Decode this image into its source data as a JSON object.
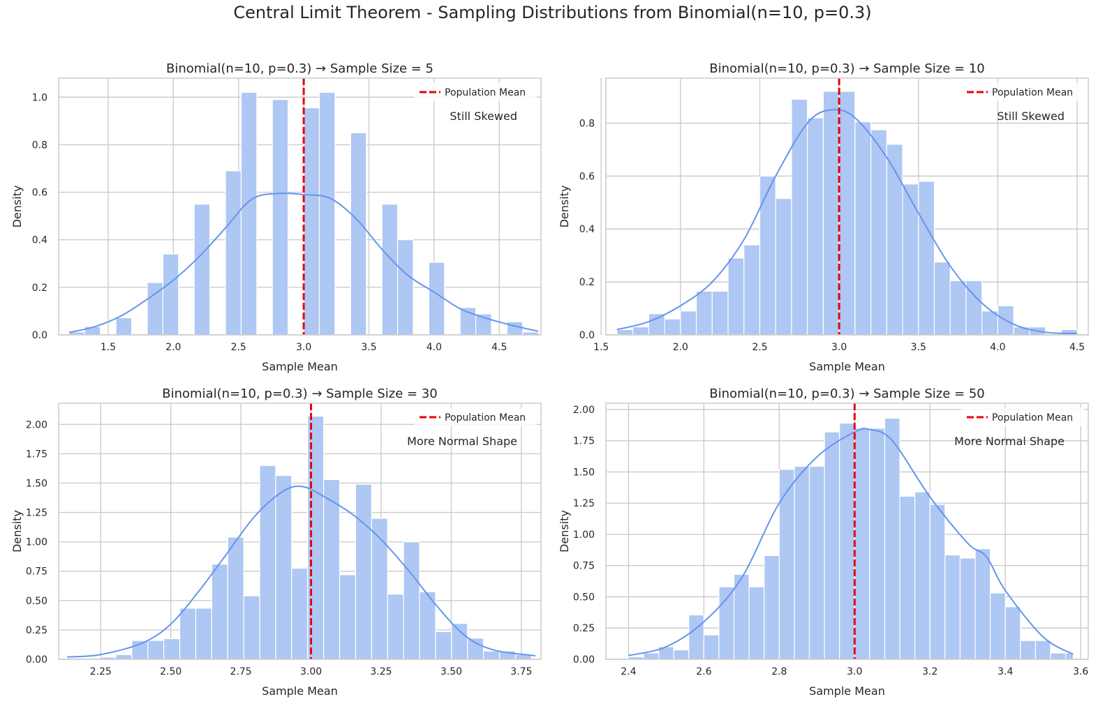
{
  "suptitle": "Central Limit Theorem - Sampling Distributions from Binomial(n=10, p=0.3)",
  "colors": {
    "bar": "#aec7f3",
    "kde": "#6495ed",
    "mean_line": "#e8000b",
    "grid": "#cccccc",
    "axes_edge": "#cccccc",
    "text": "#262626"
  },
  "chart_data": [
    {
      "type": "histogram",
      "title": "Binomial(n=10, p=0.3) → Sample Size = 5",
      "xlabel": "Sample Mean",
      "ylabel": "Density",
      "xlim": [
        1.12,
        4.82
      ],
      "ylim": [
        0,
        1.08
      ],
      "xticks": [
        1.5,
        2.0,
        2.5,
        3.0,
        3.5,
        4.0,
        4.5
      ],
      "xtick_labels": [
        "1.5",
        "2.0",
        "2.5",
        "3.0",
        "3.5",
        "4.0",
        "4.5"
      ],
      "yticks": [
        0,
        0.2,
        0.4,
        0.6,
        0.8,
        1.0
      ],
      "ytick_labels": [
        "0.0",
        "0.2",
        "0.4",
        "0.6",
        "0.8",
        "1.0"
      ],
      "bin_edges": [
        1.2,
        1.32,
        1.44,
        1.56,
        1.68,
        1.8,
        1.92,
        2.04,
        2.16,
        2.28,
        2.4,
        2.52,
        2.64,
        2.76,
        2.88,
        3.0,
        3.12,
        3.24,
        3.36,
        3.48,
        3.6,
        3.72,
        3.84,
        3.96,
        4.08,
        4.2,
        4.32,
        4.44,
        4.56,
        4.68,
        4.8
      ],
      "densities": [
        0.012,
        0.035,
        0,
        0.072,
        0,
        0.22,
        0.34,
        0,
        0.55,
        0,
        0.69,
        1.02,
        0,
        0.99,
        0,
        0.955,
        1.02,
        0,
        0.85,
        0,
        0.55,
        0.4,
        0,
        0.305,
        0,
        0.115,
        0.088,
        0,
        0.055,
        0.012
      ],
      "kde_x": [
        1.2,
        1.4,
        1.6,
        1.8,
        2.0,
        2.2,
        2.4,
        2.6,
        2.8,
        3.0,
        3.2,
        3.4,
        3.6,
        3.8,
        4.0,
        4.2,
        4.4,
        4.6,
        4.8
      ],
      "kde_y": [
        0.01,
        0.035,
        0.08,
        0.15,
        0.23,
        0.33,
        0.45,
        0.57,
        0.595,
        0.59,
        0.575,
        0.49,
        0.36,
        0.25,
        0.18,
        0.11,
        0.07,
        0.04,
        0.015
      ],
      "mean_line_x": 3.0,
      "legend": {
        "label": "Population Mean",
        "position": "upper right"
      },
      "annotation": "Still Skewed"
    },
    {
      "type": "histogram",
      "title": "Binomial(n=10, p=0.3) → Sample Size = 10",
      "xlabel": "Sample Mean",
      "ylabel": "Density",
      "xlim": [
        1.53,
        4.57
      ],
      "ylim": [
        0,
        0.97
      ],
      "xticks": [
        1.5,
        2.0,
        2.5,
        3.0,
        3.5,
        4.0,
        4.5
      ],
      "xtick_labels": [
        "1.5",
        "2.0",
        "2.5",
        "3.0",
        "3.5",
        "4.0",
        "4.5"
      ],
      "yticks": [
        0,
        0.2,
        0.4,
        0.6,
        0.8
      ],
      "ytick_labels": [
        "0.0",
        "0.2",
        "0.4",
        "0.6",
        "0.8"
      ],
      "bin_edges": [
        1.6,
        1.7,
        1.8,
        1.9,
        2.0,
        2.1,
        2.2,
        2.3,
        2.4,
        2.5,
        2.6,
        2.7,
        2.8,
        2.9,
        3.0,
        3.1,
        3.2,
        3.3,
        3.4,
        3.5,
        3.6,
        3.7,
        3.8,
        3.9,
        4.0,
        4.1,
        4.2,
        4.3,
        4.4,
        4.5
      ],
      "densities": [
        0.02,
        0.03,
        0.08,
        0.06,
        0.09,
        0.165,
        0.165,
        0.29,
        0.34,
        0.6,
        0.515,
        0.89,
        0.82,
        0.92,
        0.92,
        0.805,
        0.775,
        0.72,
        0.57,
        0.58,
        0.275,
        0.205,
        0.205,
        0.09,
        0.11,
        0.03,
        0.03,
        0,
        0.02
      ],
      "kde_x": [
        1.6,
        1.8,
        2.0,
        2.2,
        2.4,
        2.6,
        2.8,
        2.95,
        3.1,
        3.3,
        3.5,
        3.7,
        3.9,
        4.1,
        4.3,
        4.5
      ],
      "kde_y": [
        0.02,
        0.05,
        0.11,
        0.2,
        0.36,
        0.6,
        0.8,
        0.85,
        0.82,
        0.67,
        0.46,
        0.26,
        0.12,
        0.04,
        0.01,
        0.005
      ],
      "mean_line_x": 3.0,
      "legend": {
        "label": "Population Mean",
        "position": "upper right"
      },
      "annotation": "Still Skewed"
    },
    {
      "type": "histogram",
      "title": "Binomial(n=10, p=0.3) → Sample Size = 30",
      "xlabel": "Sample Mean",
      "ylabel": "Density",
      "xlim": [
        2.1,
        3.82
      ],
      "ylim": [
        0,
        2.18
      ],
      "xticks": [
        2.25,
        2.5,
        2.75,
        3.0,
        3.25,
        3.5,
        3.75
      ],
      "xtick_labels": [
        "2.25",
        "2.50",
        "2.75",
        "3.00",
        "3.25",
        "3.50",
        "3.75"
      ],
      "yticks": [
        0,
        0.25,
        0.5,
        0.75,
        1.0,
        1.25,
        1.5,
        1.75,
        2.0
      ],
      "ytick_labels": [
        "0.00",
        "0.25",
        "0.50",
        "0.75",
        "1.00",
        "1.25",
        "1.50",
        "1.75",
        "2.00"
      ],
      "bin_edges": [
        2.133,
        2.19,
        2.247,
        2.304,
        2.361,
        2.418,
        2.475,
        2.532,
        2.589,
        2.646,
        2.703,
        2.76,
        2.817,
        2.874,
        2.931,
        2.988,
        3.045,
        3.102,
        3.159,
        3.216,
        3.273,
        3.33,
        3.387,
        3.444,
        3.501,
        3.558,
        3.615,
        3.672,
        3.729,
        3.786
      ],
      "densities": [
        0.01,
        0,
        0.018,
        0.04,
        0.16,
        0.16,
        0.175,
        0.435,
        0.435,
        0.81,
        1.04,
        0.54,
        1.65,
        1.565,
        0.775,
        2.07,
        1.53,
        0.72,
        1.49,
        1.2,
        0.555,
        1.0,
        0.575,
        0.235,
        0.305,
        0.18,
        0.07,
        0.07,
        0.04
      ],
      "kde_x": [
        2.13,
        2.25,
        2.4,
        2.5,
        2.6,
        2.7,
        2.8,
        2.9,
        2.97,
        3.05,
        3.15,
        3.25,
        3.35,
        3.45,
        3.55,
        3.65,
        3.8
      ],
      "kde_y": [
        0.02,
        0.04,
        0.14,
        0.3,
        0.58,
        0.9,
        1.22,
        1.43,
        1.47,
        1.38,
        1.23,
        1.02,
        0.75,
        0.45,
        0.2,
        0.08,
        0.03
      ],
      "mean_line_x": 3.0,
      "legend": {
        "label": "Population Mean",
        "position": "upper right"
      },
      "annotation": "More Normal Shape"
    },
    {
      "type": "histogram",
      "title": "Binomial(n=10, p=0.3) → Sample Size = 50",
      "xlabel": "Sample Mean",
      "ylabel": "Density",
      "xlim": [
        2.34,
        3.62
      ],
      "ylim": [
        0,
        2.05
      ],
      "xticks": [
        2.4,
        2.6,
        2.8,
        3.0,
        3.2,
        3.4,
        3.6
      ],
      "xtick_labels": [
        "2.4",
        "2.6",
        "2.8",
        "3.0",
        "3.2",
        "3.4",
        "3.6"
      ],
      "yticks": [
        0,
        0.25,
        0.5,
        0.75,
        1.0,
        1.25,
        1.5,
        1.75,
        2.0
      ],
      "ytick_labels": [
        "0.00",
        "0.25",
        "0.50",
        "0.75",
        "1.00",
        "1.25",
        "1.50",
        "1.75",
        "2.00"
      ],
      "bin_edges": [
        2.4,
        2.44,
        2.48,
        2.52,
        2.56,
        2.6,
        2.64,
        2.68,
        2.72,
        2.76,
        2.8,
        2.84,
        2.88,
        2.92,
        2.96,
        3.0,
        3.04,
        3.08,
        3.12,
        3.16,
        3.2,
        3.24,
        3.28,
        3.32,
        3.36,
        3.4,
        3.44,
        3.48,
        3.52,
        3.56,
        3.58
      ],
      "densities": [
        0.02,
        0.05,
        0.1,
        0.075,
        0.355,
        0.195,
        0.58,
        0.68,
        0.58,
        0.83,
        1.52,
        1.545,
        1.545,
        1.82,
        1.89,
        1.85,
        1.85,
        1.93,
        1.305,
        1.34,
        1.24,
        0.835,
        0.81,
        0.885,
        0.53,
        0.42,
        0.15,
        0.15,
        0.05,
        0.05
      ],
      "kde_x": [
        2.4,
        2.5,
        2.6,
        2.7,
        2.8,
        2.9,
        3.0,
        3.04,
        3.1,
        3.2,
        3.3,
        3.35,
        3.4,
        3.5,
        3.58
      ],
      "kde_y": [
        0.03,
        0.1,
        0.3,
        0.65,
        1.25,
        1.62,
        1.82,
        1.84,
        1.75,
        1.3,
        0.93,
        0.82,
        0.55,
        0.18,
        0.04
      ],
      "mean_line_x": 3.0,
      "legend": {
        "label": "Population Mean",
        "position": "upper right"
      },
      "annotation": "More Normal Shape"
    }
  ]
}
